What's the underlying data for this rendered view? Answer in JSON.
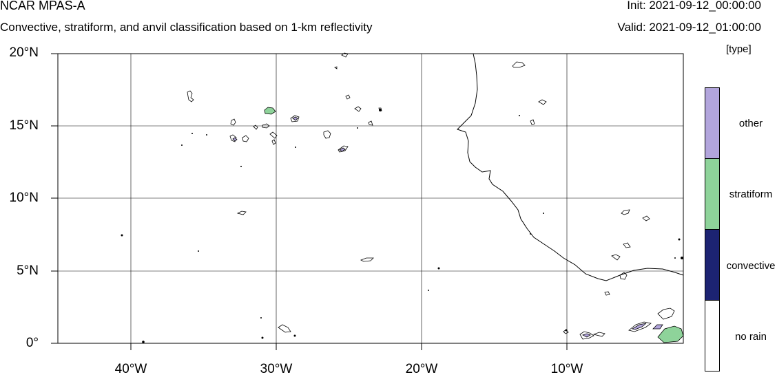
{
  "header": {
    "title": "NCAR MPAS-A",
    "subtitle": "Convective, stratiform, and anvil classification based on 1-km reflectivity",
    "init": "Init: 2021-09-12_00:00:00",
    "valid": "Valid: 2021-09-12_01:00:00"
  },
  "axes": {
    "lat_ticks": [
      "20°N",
      "15°N",
      "10°N",
      "5°N",
      "0°"
    ],
    "lon_ticks": [
      "40°W",
      "30°W",
      "20°W",
      "10°W"
    ]
  },
  "legend": {
    "units": "[type]",
    "entries": [
      {
        "label": "other",
        "color": "#b2a5dc"
      },
      {
        "label": "stratiform",
        "color": "#8ed39a"
      },
      {
        "label": "convective",
        "color": "#1c2372"
      },
      {
        "label": "no rain",
        "color": "#ffffff"
      }
    ]
  },
  "colors": {
    "coastline": "#000000",
    "gridline": "#000000",
    "other": "#b2a5dc",
    "stratiform": "#8ed39a"
  }
}
